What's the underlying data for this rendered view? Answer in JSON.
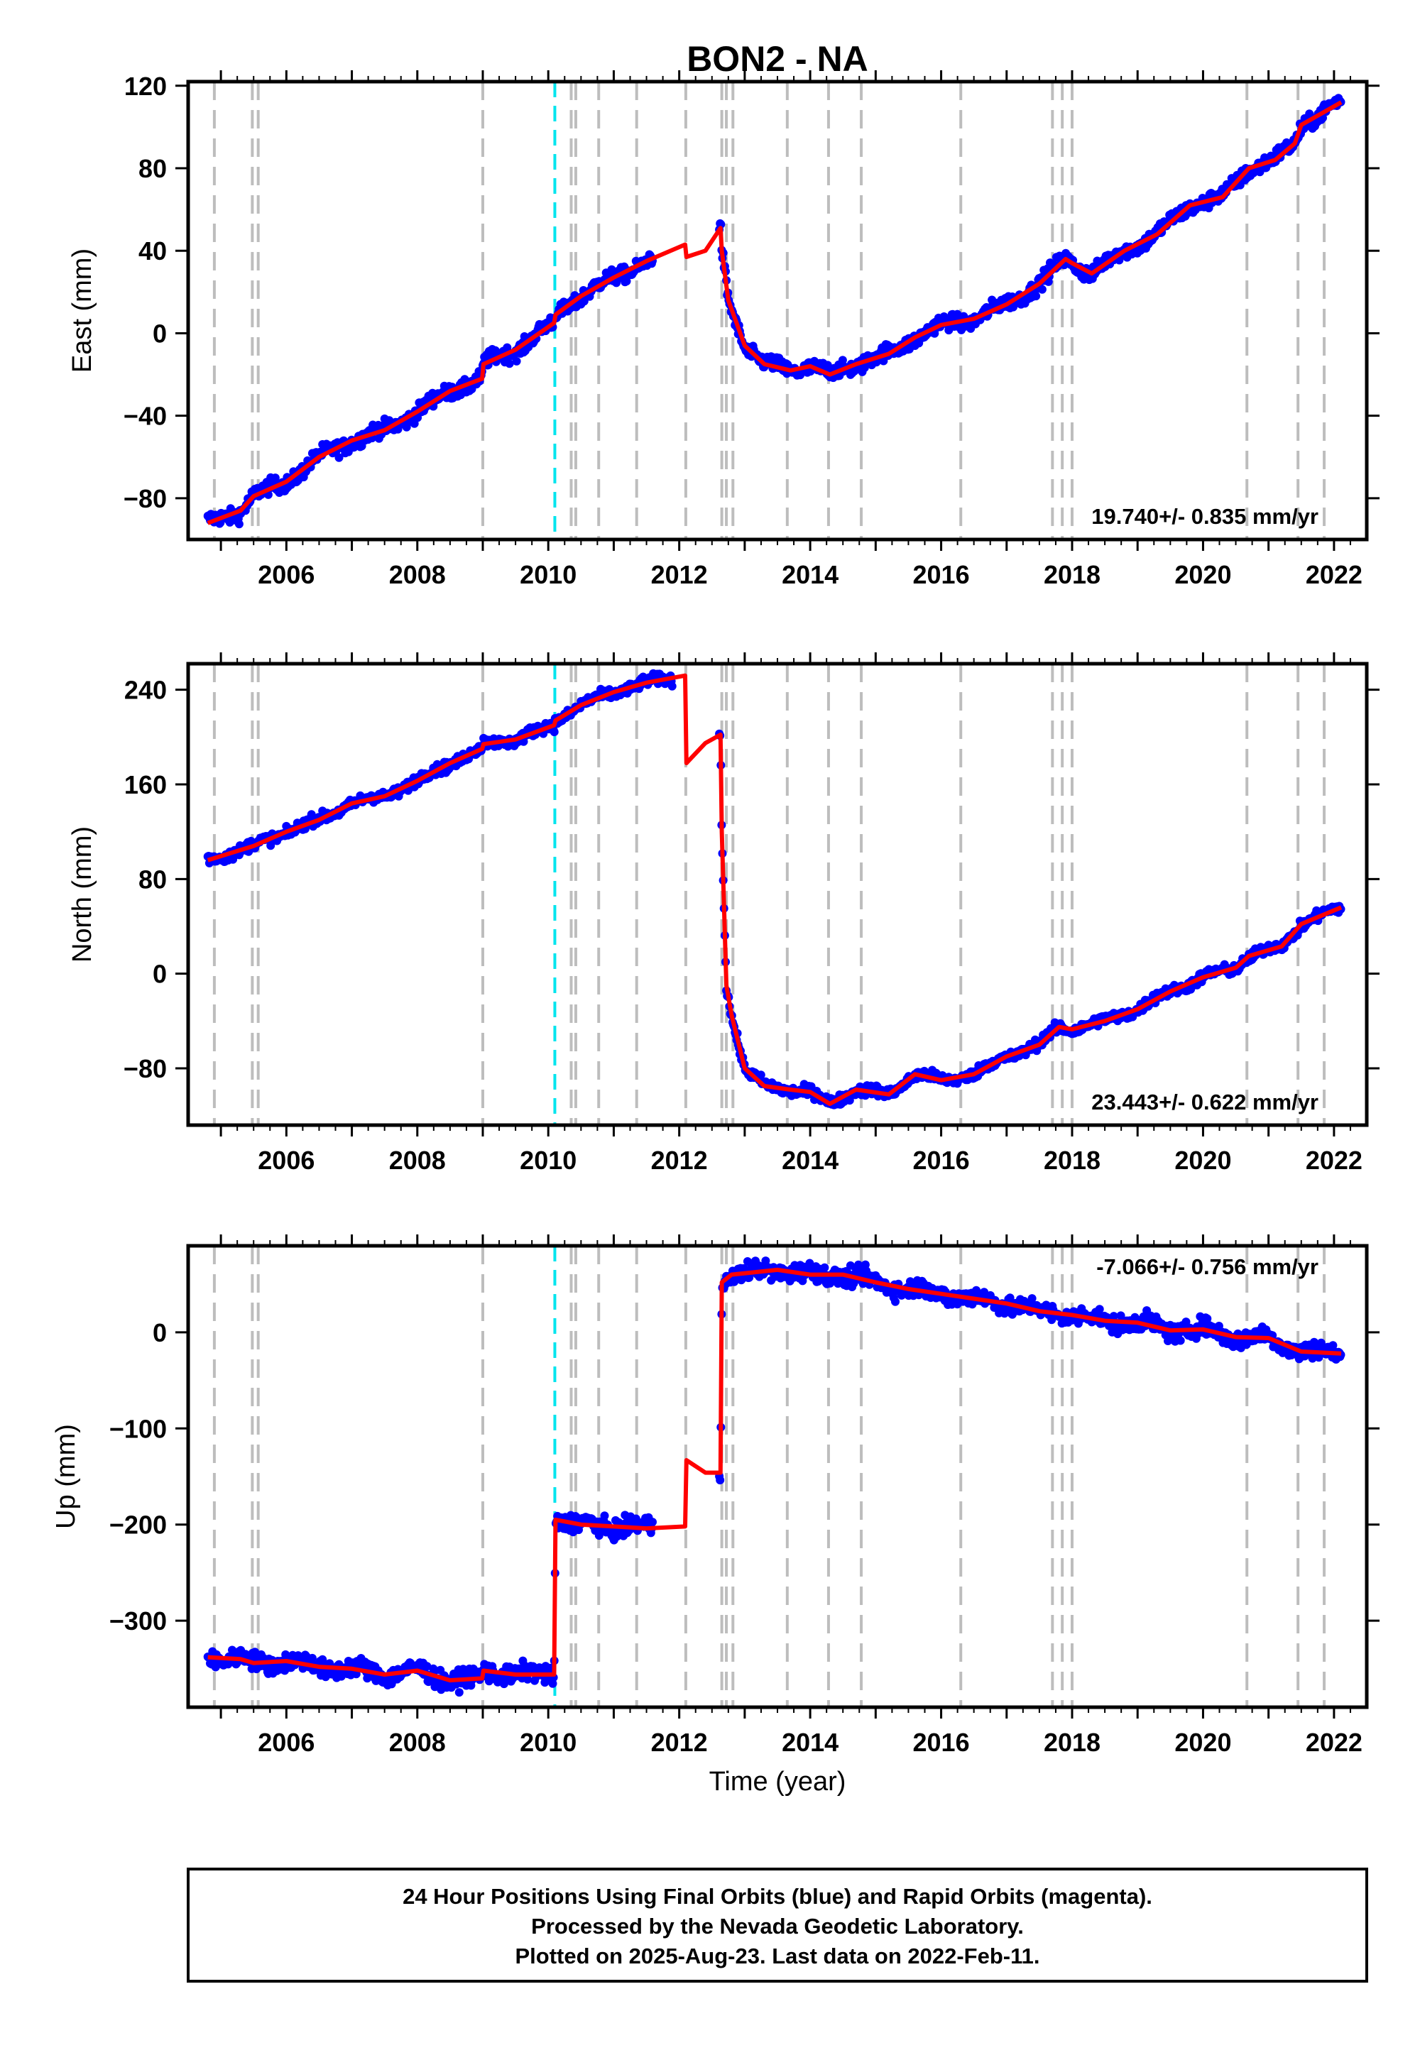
{
  "chart_data": {
    "type": "scatter",
    "title": "BON2 - NA",
    "xlabel": "Time (year)",
    "xlim": [
      2004.5,
      2022.5
    ],
    "xticks": [
      2006,
      2008,
      2010,
      2012,
      2014,
      2016,
      2018,
      2020,
      2022
    ],
    "xtick_labels": [
      "2006",
      "2008",
      "2010",
      "2012",
      "2014",
      "2016",
      "2018",
      "2020",
      "2022"
    ],
    "grid": false,
    "colors": {
      "data": "#0000ff",
      "model": "#ff0000",
      "gray_lines": "#bdbdbd",
      "cyan_line": "#00e5ee"
    },
    "event_lines_gray": [
      2004.9,
      2005.48,
      2005.57,
      2009.0,
      2010.35,
      2010.42,
      2010.77,
      2011.35,
      2012.1,
      2012.65,
      2012.72,
      2012.82,
      2013.65,
      2014.28,
      2014.78,
      2016.3,
      2017.7,
      2017.85,
      2018.0,
      2020.67,
      2021.45,
      2021.85
    ],
    "event_line_cyan": 2010.1,
    "panels": [
      {
        "name": "east",
        "ylabel": "East (mm)",
        "ylim": [
          -100,
          122
        ],
        "yticks": [
          -80,
          -40,
          0,
          40,
          80,
          120
        ],
        "ytick_labels": [
          "−80",
          "−40",
          "0",
          "40",
          "80",
          "120"
        ],
        "rate_label": "19.740+/- 0.835 mm/yr",
        "rate_position": "bottom-right",
        "data_range": [
          2004.8,
          2022.11
        ],
        "noise": 2.6,
        "model": [
          [
            2004.8,
            -92
          ],
          [
            2005.3,
            -86
          ],
          [
            2005.5,
            -79
          ],
          [
            2006.0,
            -72
          ],
          [
            2006.5,
            -60
          ],
          [
            2007.0,
            -52
          ],
          [
            2007.5,
            -47
          ],
          [
            2008.0,
            -38
          ],
          [
            2008.5,
            -28
          ],
          [
            2008.99,
            -22
          ],
          [
            2009.01,
            -15
          ],
          [
            2009.5,
            -8
          ],
          [
            2010.09,
            5
          ],
          [
            2010.11,
            9
          ],
          [
            2010.5,
            18
          ],
          [
            2011.0,
            27
          ],
          [
            2011.5,
            35
          ],
          [
            2012.09,
            43
          ],
          [
            2012.11,
            37
          ],
          [
            2012.4,
            40
          ],
          [
            2012.63,
            51
          ],
          [
            2012.65,
            40
          ],
          [
            2012.75,
            16
          ],
          [
            2013.0,
            -6
          ],
          [
            2013.3,
            -15
          ],
          [
            2013.7,
            -18
          ],
          [
            2014.0,
            -16
          ],
          [
            2014.3,
            -20
          ],
          [
            2014.7,
            -15
          ],
          [
            2015.2,
            -10
          ],
          [
            2015.6,
            -2
          ],
          [
            2016.0,
            4
          ],
          [
            2016.5,
            7
          ],
          [
            2017.0,
            14
          ],
          [
            2017.5,
            24
          ],
          [
            2017.9,
            36
          ],
          [
            2018.0,
            34
          ],
          [
            2018.3,
            29
          ],
          [
            2018.8,
            40
          ],
          [
            2019.3,
            48
          ],
          [
            2019.8,
            62
          ],
          [
            2020.3,
            66
          ],
          [
            2020.7,
            80
          ],
          [
            2021.1,
            84
          ],
          [
            2021.4,
            92
          ],
          [
            2021.5,
            101
          ],
          [
            2022.11,
            112
          ]
        ],
        "gap": [
          [
            2011.6,
            2012.6
          ]
        ]
      },
      {
        "name": "north",
        "ylabel": "North (mm)",
        "ylim": [
          -128,
          262
        ],
        "yticks": [
          -80,
          0,
          80,
          160,
          240
        ],
        "ytick_labels": [
          "−80",
          "0",
          "80",
          "160",
          "240"
        ],
        "rate_label": "23.443+/- 0.622 mm/yr",
        "rate_position": "bottom-right",
        "data_range": [
          2004.8,
          2022.11
        ],
        "noise": 3.2,
        "model": [
          [
            2004.8,
            96
          ],
          [
            2005.5,
            108
          ],
          [
            2006.0,
            120
          ],
          [
            2006.5,
            130
          ],
          [
            2007.0,
            144
          ],
          [
            2007.5,
            150
          ],
          [
            2008.0,
            163
          ],
          [
            2008.5,
            178
          ],
          [
            2008.99,
            190
          ],
          [
            2009.01,
            194
          ],
          [
            2009.5,
            198
          ],
          [
            2010.09,
            210
          ],
          [
            2010.11,
            214
          ],
          [
            2010.5,
            227
          ],
          [
            2011.0,
            238
          ],
          [
            2011.5,
            246
          ],
          [
            2012.09,
            252
          ],
          [
            2012.11,
            178
          ],
          [
            2012.4,
            195
          ],
          [
            2012.63,
            202
          ],
          [
            2012.65,
            120
          ],
          [
            2012.72,
            -10
          ],
          [
            2012.8,
            -35
          ],
          [
            2013.0,
            -80
          ],
          [
            2013.3,
            -95
          ],
          [
            2013.7,
            -98
          ],
          [
            2014.0,
            -100
          ],
          [
            2014.3,
            -110
          ],
          [
            2014.7,
            -98
          ],
          [
            2015.2,
            -102
          ],
          [
            2015.6,
            -85
          ],
          [
            2016.0,
            -90
          ],
          [
            2016.5,
            -85
          ],
          [
            2017.0,
            -70
          ],
          [
            2017.5,
            -60
          ],
          [
            2017.8,
            -45
          ],
          [
            2018.0,
            -47
          ],
          [
            2018.5,
            -40
          ],
          [
            2019.0,
            -30
          ],
          [
            2019.5,
            -15
          ],
          [
            2020.0,
            -3
          ],
          [
            2020.5,
            5
          ],
          [
            2020.7,
            15
          ],
          [
            2021.2,
            23
          ],
          [
            2021.5,
            42
          ],
          [
            2022.11,
            56
          ]
        ],
        "gap": [
          [
            2011.9,
            2012.6
          ]
        ]
      },
      {
        "name": "up",
        "ylabel": "Up (mm)",
        "ylim": [
          -390,
          90
        ],
        "yticks": [
          -300,
          -200,
          -100,
          0
        ],
        "ytick_labels": [
          "−300",
          "−200",
          "−100",
          "0"
        ],
        "rate_label": "-7.066+/- 0.756 mm/yr",
        "rate_position": "top-right",
        "data_range": [
          2004.8,
          2022.11
        ],
        "noise": 6.5,
        "model": [
          [
            2004.8,
            -338
          ],
          [
            2005.3,
            -340
          ],
          [
            2005.5,
            -344
          ],
          [
            2006.0,
            -342
          ],
          [
            2006.5,
            -348
          ],
          [
            2007.0,
            -350
          ],
          [
            2007.5,
            -356
          ],
          [
            2008.0,
            -352
          ],
          [
            2008.5,
            -362
          ],
          [
            2008.99,
            -360
          ],
          [
            2009.01,
            -352
          ],
          [
            2009.5,
            -356
          ],
          [
            2010.09,
            -356
          ],
          [
            2010.11,
            -195
          ],
          [
            2010.5,
            -200
          ],
          [
            2011.0,
            -202
          ],
          [
            2011.5,
            -204
          ],
          [
            2012.09,
            -202
          ],
          [
            2012.11,
            -133
          ],
          [
            2012.4,
            -146
          ],
          [
            2012.63,
            -146
          ],
          [
            2012.65,
            52
          ],
          [
            2012.8,
            60
          ],
          [
            2013.5,
            65
          ],
          [
            2014.0,
            60
          ],
          [
            2014.5,
            60
          ],
          [
            2015.0,
            52
          ],
          [
            2015.5,
            45
          ],
          [
            2016.0,
            40
          ],
          [
            2016.5,
            35
          ],
          [
            2017.0,
            30
          ],
          [
            2017.5,
            22
          ],
          [
            2018.0,
            18
          ],
          [
            2018.5,
            12
          ],
          [
            2019.0,
            10
          ],
          [
            2019.5,
            2
          ],
          [
            2020.0,
            3
          ],
          [
            2020.5,
            -5
          ],
          [
            2021.0,
            -6
          ],
          [
            2021.5,
            -20
          ],
          [
            2022.11,
            -22
          ]
        ],
        "gap": [
          [
            2011.6,
            2012.6
          ]
        ]
      }
    ]
  },
  "footer": {
    "line1": "24 Hour Positions Using Final Orbits (blue) and Rapid Orbits (magenta).",
    "line2": "Processed by the Nevada Geodetic Laboratory.",
    "line3": "Plotted on 2025-Aug-23. Last data on 2022-Feb-11."
  }
}
